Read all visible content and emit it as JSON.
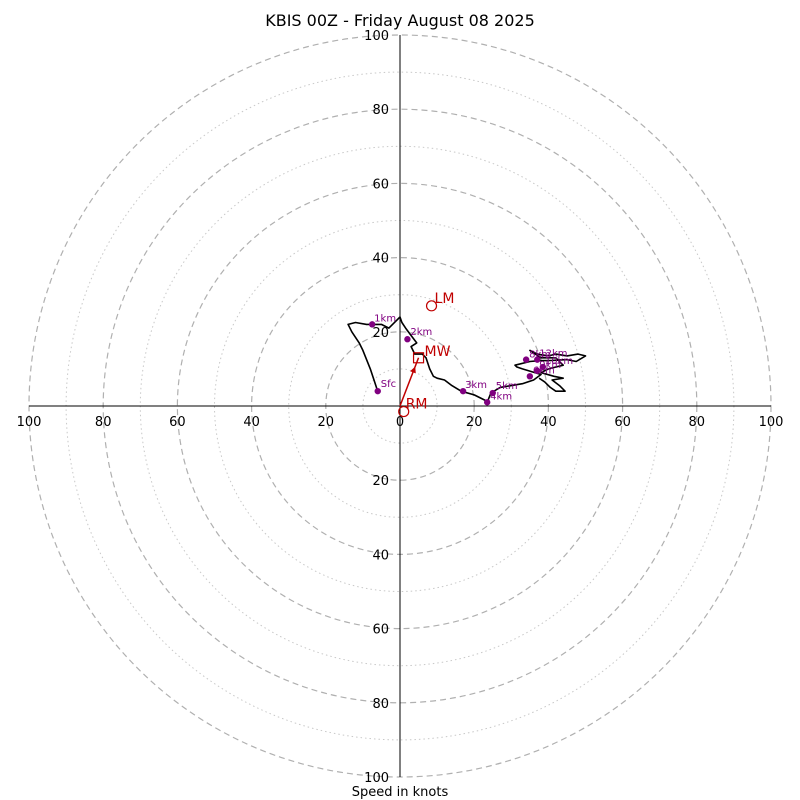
{
  "chart_data": {
    "type": "hodograph",
    "title": "KBIS 00Z - Friday August 08 2025",
    "xlabel": "Speed in knots",
    "range": [
      -100,
      100
    ],
    "major_rings": [
      20,
      40,
      60,
      80,
      100
    ],
    "minor_rings": [
      10,
      30,
      50,
      70,
      90
    ],
    "x_tick_labels": [
      "100",
      "80",
      "60",
      "40",
      "20",
      "0",
      "20",
      "40",
      "60",
      "80",
      "100"
    ],
    "y_tick_labels_top": [
      "100",
      "80",
      "60",
      "40",
      "20"
    ],
    "y_tick_labels_bottom": [
      "20",
      "40",
      "60",
      "80",
      "100"
    ],
    "grid": true,
    "colors": {
      "hodograph": "#000000",
      "height_points": "#800080",
      "storm_motion": "#c00000",
      "grid": "#b0b0b0"
    },
    "hodograph": [
      [
        -6,
        4
      ],
      [
        -7,
        7
      ],
      [
        -8,
        10
      ],
      [
        -10,
        15
      ],
      [
        -11,
        17
      ],
      [
        -13,
        20
      ],
      [
        -14,
        22
      ],
      [
        -12,
        22.5
      ],
      [
        -9,
        22
      ],
      [
        -7.5,
        22
      ],
      [
        -5,
        22
      ],
      [
        -3,
        21
      ],
      [
        -1,
        23
      ],
      [
        0,
        24
      ],
      [
        0.5,
        22.5
      ],
      [
        1.5,
        21
      ],
      [
        3,
        19
      ],
      [
        4.5,
        17
      ],
      [
        3,
        16
      ],
      [
        4,
        14
      ],
      [
        6,
        14
      ],
      [
        7,
        13
      ],
      [
        8,
        10
      ],
      [
        9,
        8
      ],
      [
        10,
        7.5
      ],
      [
        12,
        7
      ],
      [
        14,
        5.5
      ],
      [
        16.5,
        4
      ],
      [
        20,
        3
      ],
      [
        23,
        1.5
      ],
      [
        23.5,
        1
      ],
      [
        24.5,
        3.5
      ],
      [
        27,
        5
      ],
      [
        30,
        5.5
      ],
      [
        33,
        6
      ],
      [
        36,
        7
      ],
      [
        38,
        8.5
      ],
      [
        33,
        10
      ],
      [
        31.5,
        10.5
      ],
      [
        31,
        11
      ],
      [
        35,
        12
      ],
      [
        37.5,
        12.2
      ],
      [
        41,
        12.3
      ],
      [
        45,
        12.5
      ],
      [
        47.5,
        12
      ],
      [
        50,
        13.5
      ],
      [
        48,
        14
      ],
      [
        45,
        13.5
      ],
      [
        42,
        14
      ],
      [
        40,
        13.5
      ],
      [
        37,
        14
      ],
      [
        35,
        15
      ],
      [
        38,
        13
      ],
      [
        42,
        13
      ],
      [
        44,
        11
      ],
      [
        40,
        10
      ],
      [
        38,
        9
      ],
      [
        41.5,
        8
      ],
      [
        44,
        7.5
      ],
      [
        41,
        7
      ],
      [
        43,
        5.5
      ],
      [
        44.5,
        4
      ],
      [
        42,
        4
      ],
      [
        40.5,
        5
      ],
      [
        39,
        6.5
      ],
      [
        37.5,
        7.5
      ]
    ],
    "height_points": [
      {
        "label": "Sfc",
        "u": -6,
        "v": 4
      },
      {
        "label": "1km",
        "u": -7.5,
        "v": 22
      },
      {
        "label": "2km",
        "u": 2,
        "v": 18
      },
      {
        "label": "3km",
        "u": 17,
        "v": 4
      },
      {
        "label": "4km",
        "u": 23.5,
        "v": 1
      },
      {
        "label": "5km",
        "u": 25,
        "v": 3.5
      },
      {
        "label": "6km",
        "u": 35,
        "v": 8
      },
      {
        "label": "8km",
        "u": 34,
        "v": 12.5
      },
      {
        "label": "9km",
        "u": 37,
        "v": 9.5
      },
      {
        "label": "10km",
        "u": 38.5,
        "v": 10.5
      },
      {
        "label": "12km",
        "u": 37,
        "v": 12.5
      }
    ],
    "storm_motion": {
      "MW": {
        "label": "MW",
        "u": 5,
        "v": 13
      },
      "LM": {
        "label": "LM",
        "u": 8.5,
        "v": 27
      },
      "RM": {
        "label": "RM",
        "u": 1,
        "v": -1.5
      }
    }
  }
}
